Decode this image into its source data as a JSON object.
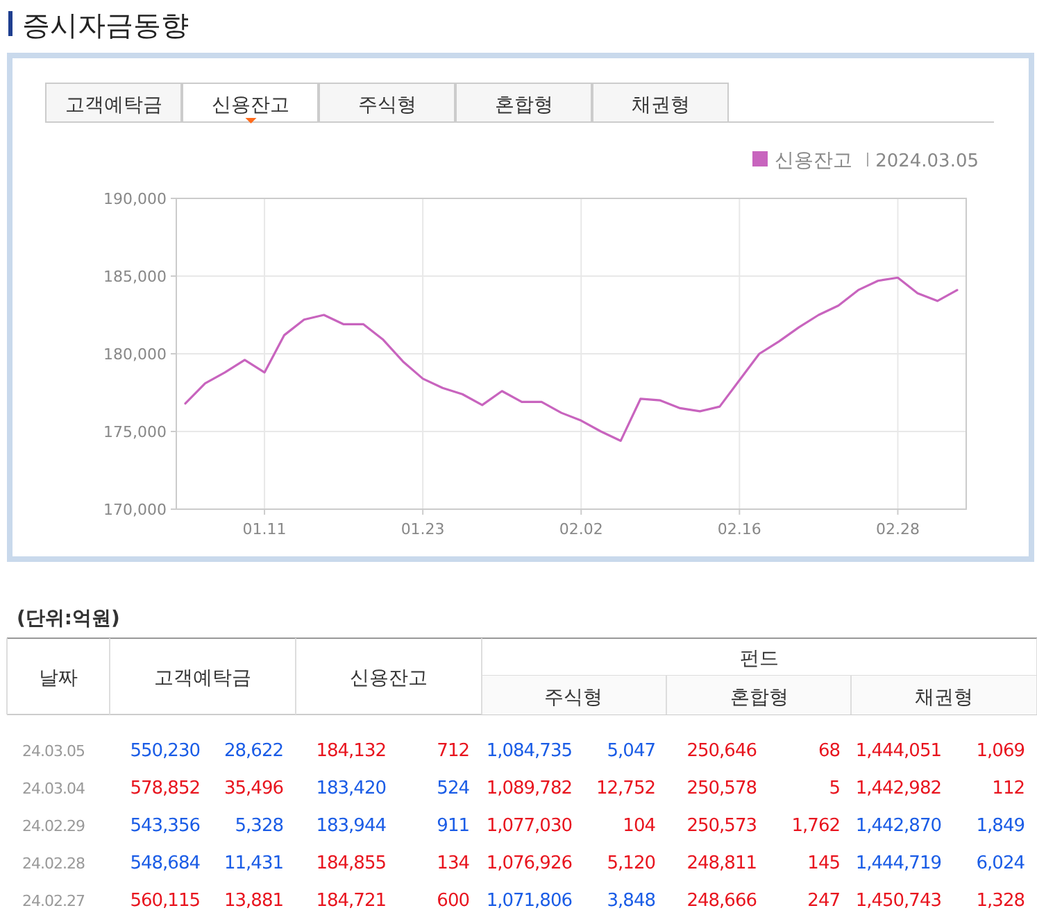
{
  "chart_data": [
    {
      "type": "line",
      "title": "증시자금동향",
      "categories": [
        null,
        null,
        null,
        null,
        "01.11",
        null,
        null,
        null,
        null,
        null,
        null,
        null,
        "01.23",
        null,
        null,
        null,
        null,
        null,
        null,
        null,
        "02.02",
        null,
        null,
        null,
        null,
        null,
        null,
        null,
        "02.16",
        null,
        null,
        null,
        null,
        null,
        null,
        null,
        "02.28",
        null,
        null,
        null
      ],
      "series": [
        {
          "name": "신용잔고",
          "color": "#c864be",
          "values": [
            176800,
            178100,
            178800,
            179600,
            178800,
            181200,
            182200,
            182500,
            181900,
            181900,
            180900,
            179500,
            178400,
            177800,
            177400,
            176700,
            177600,
            176900,
            176900,
            176200,
            175700,
            175000,
            174400,
            177100,
            177000,
            176500,
            176300,
            176600,
            178300,
            180000,
            180800,
            181700,
            182500,
            183100,
            184100,
            184700,
            184900,
            183900,
            183400,
            184100
          ]
        }
      ],
      "ylim": [
        170000,
        190000
      ],
      "yticks": [
        {
          "value": 170000,
          "label": "170,000"
        },
        {
          "value": 175000,
          "label": "175,000"
        },
        {
          "value": 180000,
          "label": "180,000"
        },
        {
          "value": 185000,
          "label": "185,000"
        },
        {
          "value": 190000,
          "label": "190,000"
        }
      ],
      "grid": true,
      "legend": "top right",
      "annotations": [
        "고객예탁금",
        "신용잔고",
        "주식형",
        "혼합형",
        "채권형",
        "2024.03.05"
      ]
    },
    {
      "type": "other",
      "title": "(단위:억원)",
      "annotations": [
        "날짜",
        "고객예탁금",
        "신용잔고",
        "펀드",
        "주식형",
        "혼합형",
        "채권형",
        "24.03.05",
        "550,230",
        "28,622",
        "184,132",
        "712",
        "1,084,735",
        "5,047",
        "250,646",
        "68",
        "1,444,051",
        "1,069",
        "24.03.04",
        "578,852",
        "35,496",
        "183,420",
        "524",
        "1,089,782",
        "12,752",
        "250,578",
        "5",
        "1,442,982",
        "112",
        "24.02.29",
        "543,356",
        "5,328",
        "183,944",
        "911",
        "1,077,030",
        "104",
        "250,573",
        "1,762",
        "1,442,870",
        "1,849",
        "24.02.28",
        "548,684",
        "11,431",
        "184,855",
        "134",
        "1,076,926",
        "5,120",
        "248,811",
        "145",
        "1,444,719",
        "6,024",
        "24.02.27",
        "560,115",
        "13,881",
        "184,721",
        "600",
        "1,071,806",
        "3,848",
        "248,666",
        "247",
        "1,450,743",
        "1,328"
      ],
      "colors": [
        "#333333",
        "#333333",
        "#333333",
        "#333333",
        "#333333",
        "#333333",
        "#333333",
        "#999999",
        "#1a5ce6",
        "#1a5ce6",
        "#e8141e",
        "#e8141e",
        "#1a5ce6",
        "#1a5ce6",
        "#e8141e",
        "#e8141e",
        "#e8141e",
        "#e8141e",
        "#999999",
        "#e8141e",
        "#e8141e",
        "#1a5ce6",
        "#1a5ce6",
        "#e8141e",
        "#e8141e",
        "#e8141e",
        "#e8141e",
        "#e8141e",
        "#e8141e",
        "#999999",
        "#1a5ce6",
        "#1a5ce6",
        "#1a5ce6",
        "#1a5ce6",
        "#e8141e",
        "#e8141e",
        "#e8141e",
        "#e8141e",
        "#1a5ce6",
        "#1a5ce6",
        "#999999",
        "#1a5ce6",
        "#1a5ce6",
        "#e8141e",
        "#e8141e",
        "#e8141e",
        "#e8141e",
        "#e8141e",
        "#e8141e",
        "#1a5ce6",
        "#1a5ce6",
        "#999999",
        "#e8141e",
        "#e8141e",
        "#e8141e",
        "#e8141e",
        "#1a5ce6",
        "#1a5ce6",
        "#e8141e",
        "#e8141e",
        "#e8141e",
        "#e8141e"
      ]
    }
  ]
}
